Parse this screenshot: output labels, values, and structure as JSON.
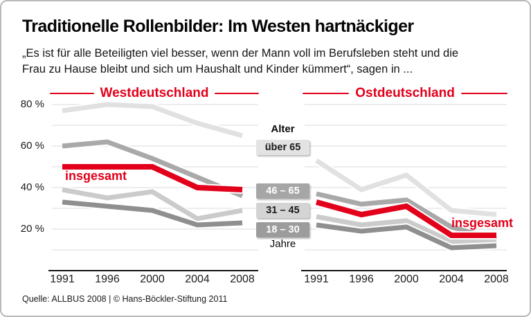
{
  "frame": {
    "title": "Traditionelle Rollenbilder: Im Westen hartnäckiger",
    "subtitle_line1": "„Es ist für alle Beteiligten viel besser, wenn der Mann voll im Berufsleben steht und die",
    "subtitle_line2": "Frau zu Hause bleibt und sich um Haushalt und Kinder kümmert“, sagen in ...",
    "footer": "Quelle: ALLBUS 2008 | © Hans-Böckler-Stiftung 2011"
  },
  "colors": {
    "accent": "#e2001a",
    "grid": "#e7e7e7",
    "axis": "#111111"
  },
  "panel_headers": {
    "west": "Westdeutschland",
    "east": "Ostdeutschland"
  },
  "axis": {
    "y_tick_labels": [
      "80 %",
      "60 %",
      "40 %",
      "20 %"
    ],
    "y_tick_values": [
      80,
      60,
      40,
      20
    ]
  },
  "legend": {
    "header": "Alter",
    "boxes": [
      {
        "label": "über 65",
        "bg": "#e3e3e3",
        "fg": "#1a1a1a"
      },
      {
        "label": "46 – 65",
        "bg": "#a6a6a6",
        "fg": "#ffffff"
      },
      {
        "label": "31 – 45",
        "bg": "#d4d4d4",
        "fg": "#1a1a1a"
      },
      {
        "label": "18 – 30",
        "bg": "#9c9c9c",
        "fg": "#ffffff"
      }
    ],
    "footer": "Jahre"
  },
  "inline_labels": {
    "insgesamt_west": "insgesamt",
    "insgesamt_east": "insgesamt"
  },
  "chart_data": [
    {
      "type": "line",
      "title": "Westdeutschland",
      "x": [
        1991,
        1996,
        2000,
        2004,
        2008
      ],
      "ylabel": "%",
      "ylim": [
        0,
        85
      ],
      "yticks": [
        20,
        40,
        60,
        80
      ],
      "grid": "horizontal, every 10 %",
      "legend_position": "center between panels",
      "series": [
        {
          "name": "über 65",
          "color": "#e1e1e1",
          "values": [
            77,
            80,
            79,
            71,
            65
          ]
        },
        {
          "name": "46 – 65",
          "color": "#a9a9a9",
          "values": [
            60,
            62,
            54,
            45,
            36
          ]
        },
        {
          "name": "31 – 45",
          "color": "#cbcbcb",
          "values": [
            39,
            35,
            38,
            25,
            29
          ]
        },
        {
          "name": "18 – 30",
          "color": "#8f8f8f",
          "values": [
            33,
            31,
            29,
            22,
            23
          ]
        },
        {
          "name": "insgesamt",
          "color": "#e2001a",
          "values": [
            50,
            50,
            50,
            40,
            39
          ]
        }
      ]
    },
    {
      "type": "line",
      "title": "Ostdeutschland",
      "x": [
        1991,
        1996,
        2000,
        2004,
        2008
      ],
      "ylabel": "%",
      "ylim": [
        0,
        85
      ],
      "yticks": [
        20,
        40,
        60,
        80
      ],
      "grid": "horizontal, every 10 %",
      "legend_position": "center between panels",
      "series": [
        {
          "name": "über 65",
          "color": "#e1e1e1",
          "values": [
            53,
            39,
            46,
            29,
            27
          ]
        },
        {
          "name": "46 – 65",
          "color": "#a9a9a9",
          "values": [
            37,
            32,
            34,
            21,
            15
          ]
        },
        {
          "name": "31 – 45",
          "color": "#cbcbcb",
          "values": [
            26,
            22,
            24,
            14,
            14
          ]
        },
        {
          "name": "18 – 30",
          "color": "#8f8f8f",
          "values": [
            22,
            19,
            21,
            11,
            12
          ]
        },
        {
          "name": "insgesamt",
          "color": "#e2001a",
          "values": [
            33,
            27,
            31,
            17,
            17
          ]
        }
      ]
    }
  ]
}
